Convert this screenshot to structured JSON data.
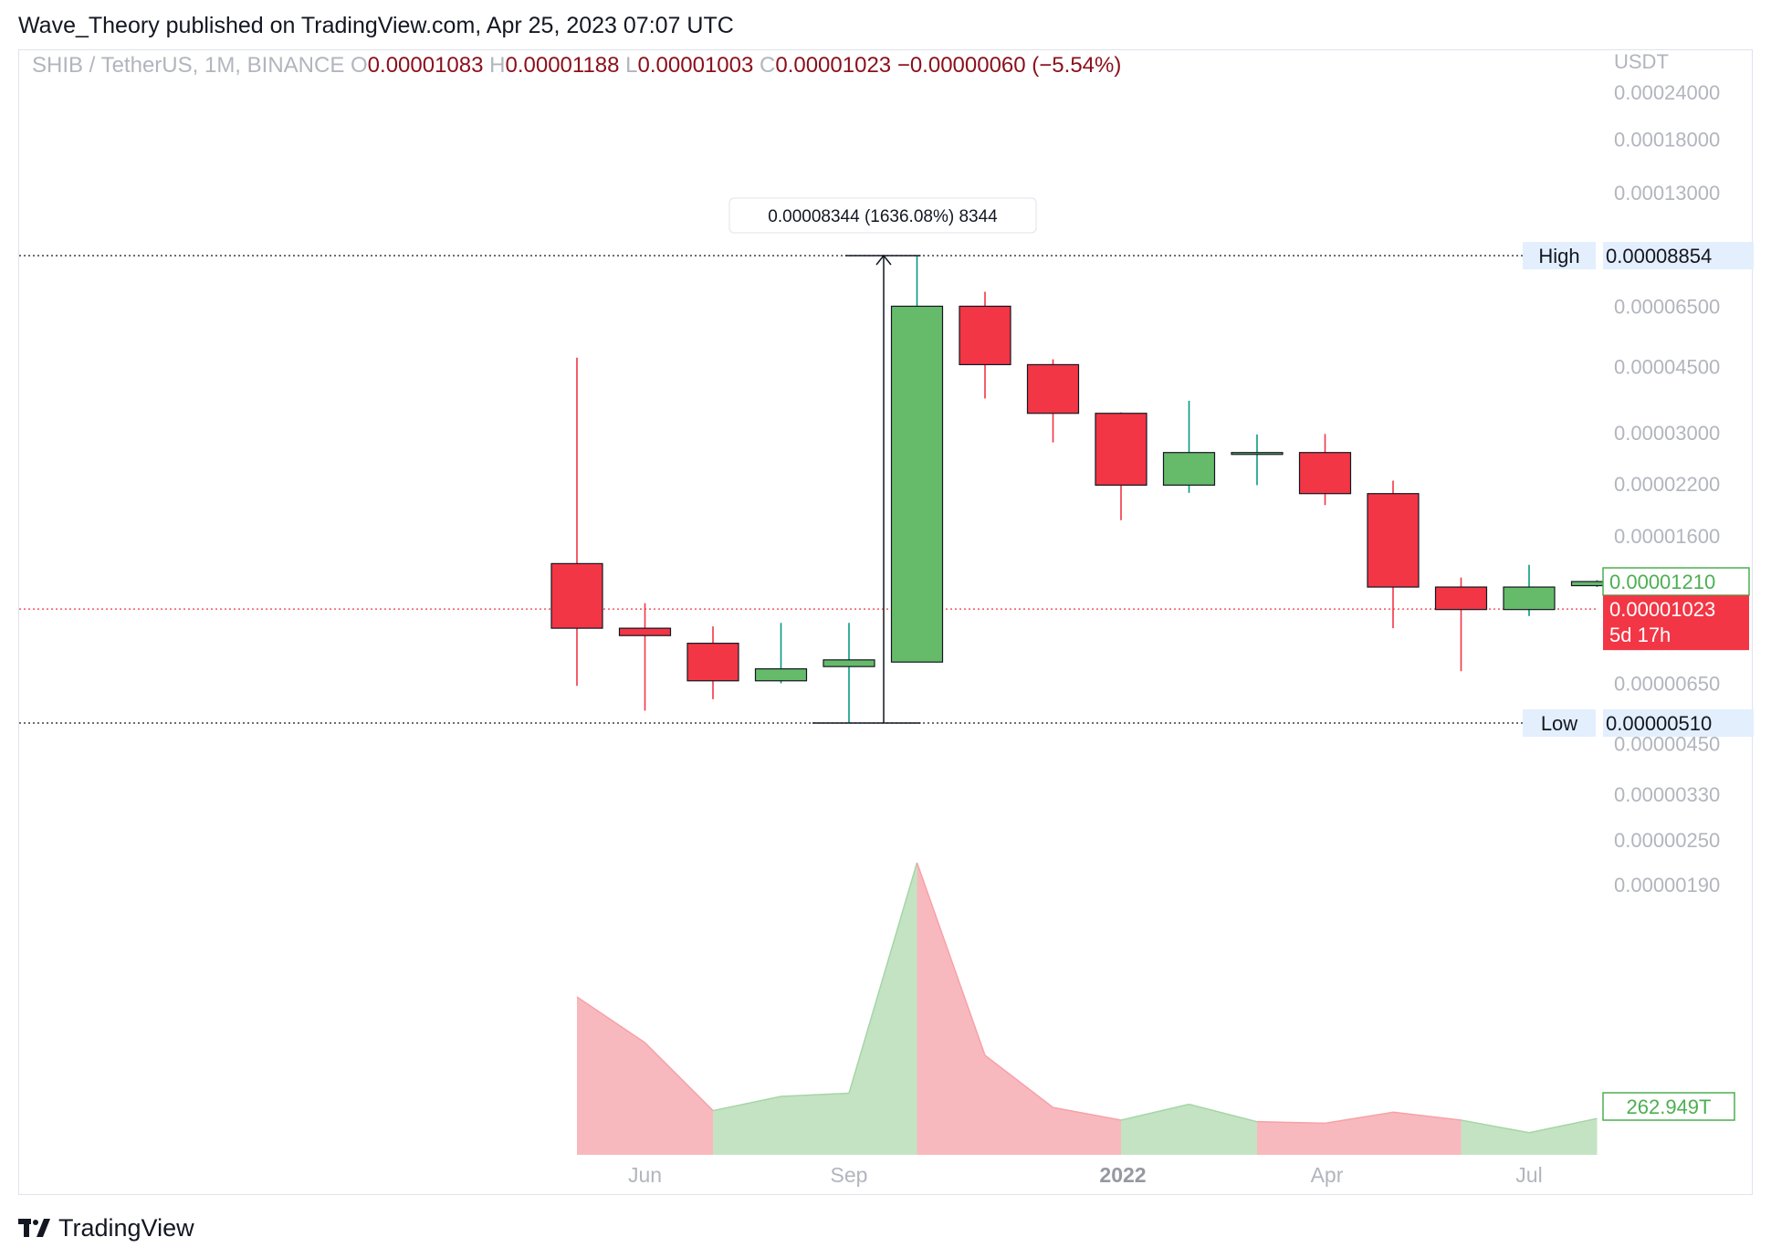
{
  "header": {
    "publisher_line": "Wave_Theory published on TradingView.com, Apr 25, 2023 07:07 UTC"
  },
  "footer": {
    "brand": "TradingView"
  },
  "colors": {
    "up": "#66bb6a",
    "down": "#f23645",
    "up_volume": "#c4e3c3",
    "down_volume": "#f8b9be",
    "axis_text": "#b2b5be",
    "legend_red": "#8b0f1a",
    "muted": "#b2b5be",
    "grid_dotted": "#131722",
    "price_line": "#f23645",
    "label_bg": "#e3effd"
  },
  "chart_data": {
    "type": "candlestick",
    "symbol_legend": {
      "symbol": "SHIB / TetherUS, 1M, BINANCE",
      "open_label": "O",
      "open": "0.00001083",
      "high_label": "H",
      "high": "0.00001188",
      "low_label": "L",
      "low": "0.00001003",
      "close_label": "C",
      "close": "0.00001023",
      "change": "−0.00000060 (−5.54%)"
    },
    "y_axis": {
      "unit_label": "USDT",
      "scale": "log",
      "ticks": [
        "0.00024000",
        "0.00018000",
        "0.00013000",
        "0.00006500",
        "0.00004500",
        "0.00003000",
        "0.00002200",
        "0.00001600",
        "0.00000650",
        "0.00000450",
        "0.00000330",
        "0.00000250",
        "0.00000190"
      ]
    },
    "x_axis": {
      "ticks": [
        "Jun",
        "Sep",
        "2022",
        "Apr",
        "Jul"
      ],
      "bold_ticks": [
        "2022"
      ]
    },
    "candles": [
      {
        "month": "2021-05",
        "o": 1.35e-05,
        "h": 4.75e-05,
        "l": 6.4e-06,
        "c": 9.1e-06
      },
      {
        "month": "2021-06",
        "o": 9.1e-06,
        "h": 1.06e-05,
        "l": 5.5e-06,
        "c": 8.7e-06
      },
      {
        "month": "2021-07",
        "o": 8.3e-06,
        "h": 9.2e-06,
        "l": 5.9e-06,
        "c": 6.6e-06
      },
      {
        "month": "2021-08",
        "o": 6.6e-06,
        "h": 9.4e-06,
        "l": 6.5e-06,
        "c": 7.1e-06
      },
      {
        "month": "2021-09",
        "o": 7.2e-06,
        "h": 9.4e-06,
        "l": 5.1e-06,
        "c": 7.5e-06
      },
      {
        "month": "2021-10",
        "o": 7.4e-06,
        "h": 8.85e-05,
        "l": 7.4e-06,
        "c": 6.5e-05
      },
      {
        "month": "2021-11",
        "o": 6.5e-05,
        "h": 7.1e-05,
        "l": 3.7e-05,
        "c": 4.55e-05
      },
      {
        "month": "2021-12",
        "o": 4.55e-05,
        "h": 4.7e-05,
        "l": 2.83e-05,
        "c": 3.38e-05
      },
      {
        "month": "2022-01",
        "o": 3.38e-05,
        "h": 3.4e-05,
        "l": 1.76e-05,
        "c": 2.18e-05
      },
      {
        "month": "2022-02",
        "o": 2.18e-05,
        "h": 3.65e-05,
        "l": 2.08e-05,
        "c": 2.66e-05
      },
      {
        "month": "2022-03",
        "o": 2.63e-05,
        "h": 2.97e-05,
        "l": 2.18e-05,
        "c": 2.66e-05
      },
      {
        "month": "2022-04",
        "o": 2.66e-05,
        "h": 2.98e-05,
        "l": 1.93e-05,
        "c": 2.07e-05
      },
      {
        "month": "2022-05",
        "o": 2.07e-05,
        "h": 2.24e-05,
        "l": 9.1e-06,
        "c": 1.17e-05
      },
      {
        "month": "2022-06",
        "o": 1.17e-05,
        "h": 1.24e-05,
        "l": 7e-06,
        "c": 1.02e-05
      },
      {
        "month": "2022-07",
        "o": 1.02e-05,
        "h": 1.34e-05,
        "l": 9.8e-06,
        "c": 1.17e-05
      },
      {
        "month": "2022-08",
        "o": 1.18e-05,
        "h": 1.22e-05,
        "l": 1.17e-05,
        "c": 1.21e-05
      }
    ],
    "volume": {
      "series_points": [
        {
          "month": "2021-05",
          "v": 1.0
        },
        {
          "month": "2021-06",
          "v": 0.71
        },
        {
          "month": "2021-07",
          "v": 0.28
        },
        {
          "month": "2021-08",
          "v": 0.37
        },
        {
          "month": "2021-09",
          "v": 0.39
        },
        {
          "month": "2021-10",
          "v": 1.85
        },
        {
          "month": "2021-11",
          "v": 0.63
        },
        {
          "month": "2021-12",
          "v": 0.3
        },
        {
          "month": "2022-01",
          "v": 0.22
        },
        {
          "month": "2022-02",
          "v": 0.32
        },
        {
          "month": "2022-03",
          "v": 0.21
        },
        {
          "month": "2022-04",
          "v": 0.2
        },
        {
          "month": "2022-05",
          "v": 0.27
        },
        {
          "month": "2022-06",
          "v": 0.22
        },
        {
          "month": "2022-07",
          "v": 0.14
        },
        {
          "month": "2022-08",
          "v": 0.23
        }
      ],
      "last_label": "262.949T"
    },
    "high_line": {
      "label": "High",
      "value": "0.00008854"
    },
    "low_line": {
      "label": "Low",
      "value": "0.00000510"
    },
    "measure": {
      "text": "0.00008344 (1636.08%) 8344"
    },
    "current_price": {
      "value": "0.00001023",
      "countdown": "5d 17h"
    },
    "prev_price": {
      "value": "0.00001210"
    }
  }
}
